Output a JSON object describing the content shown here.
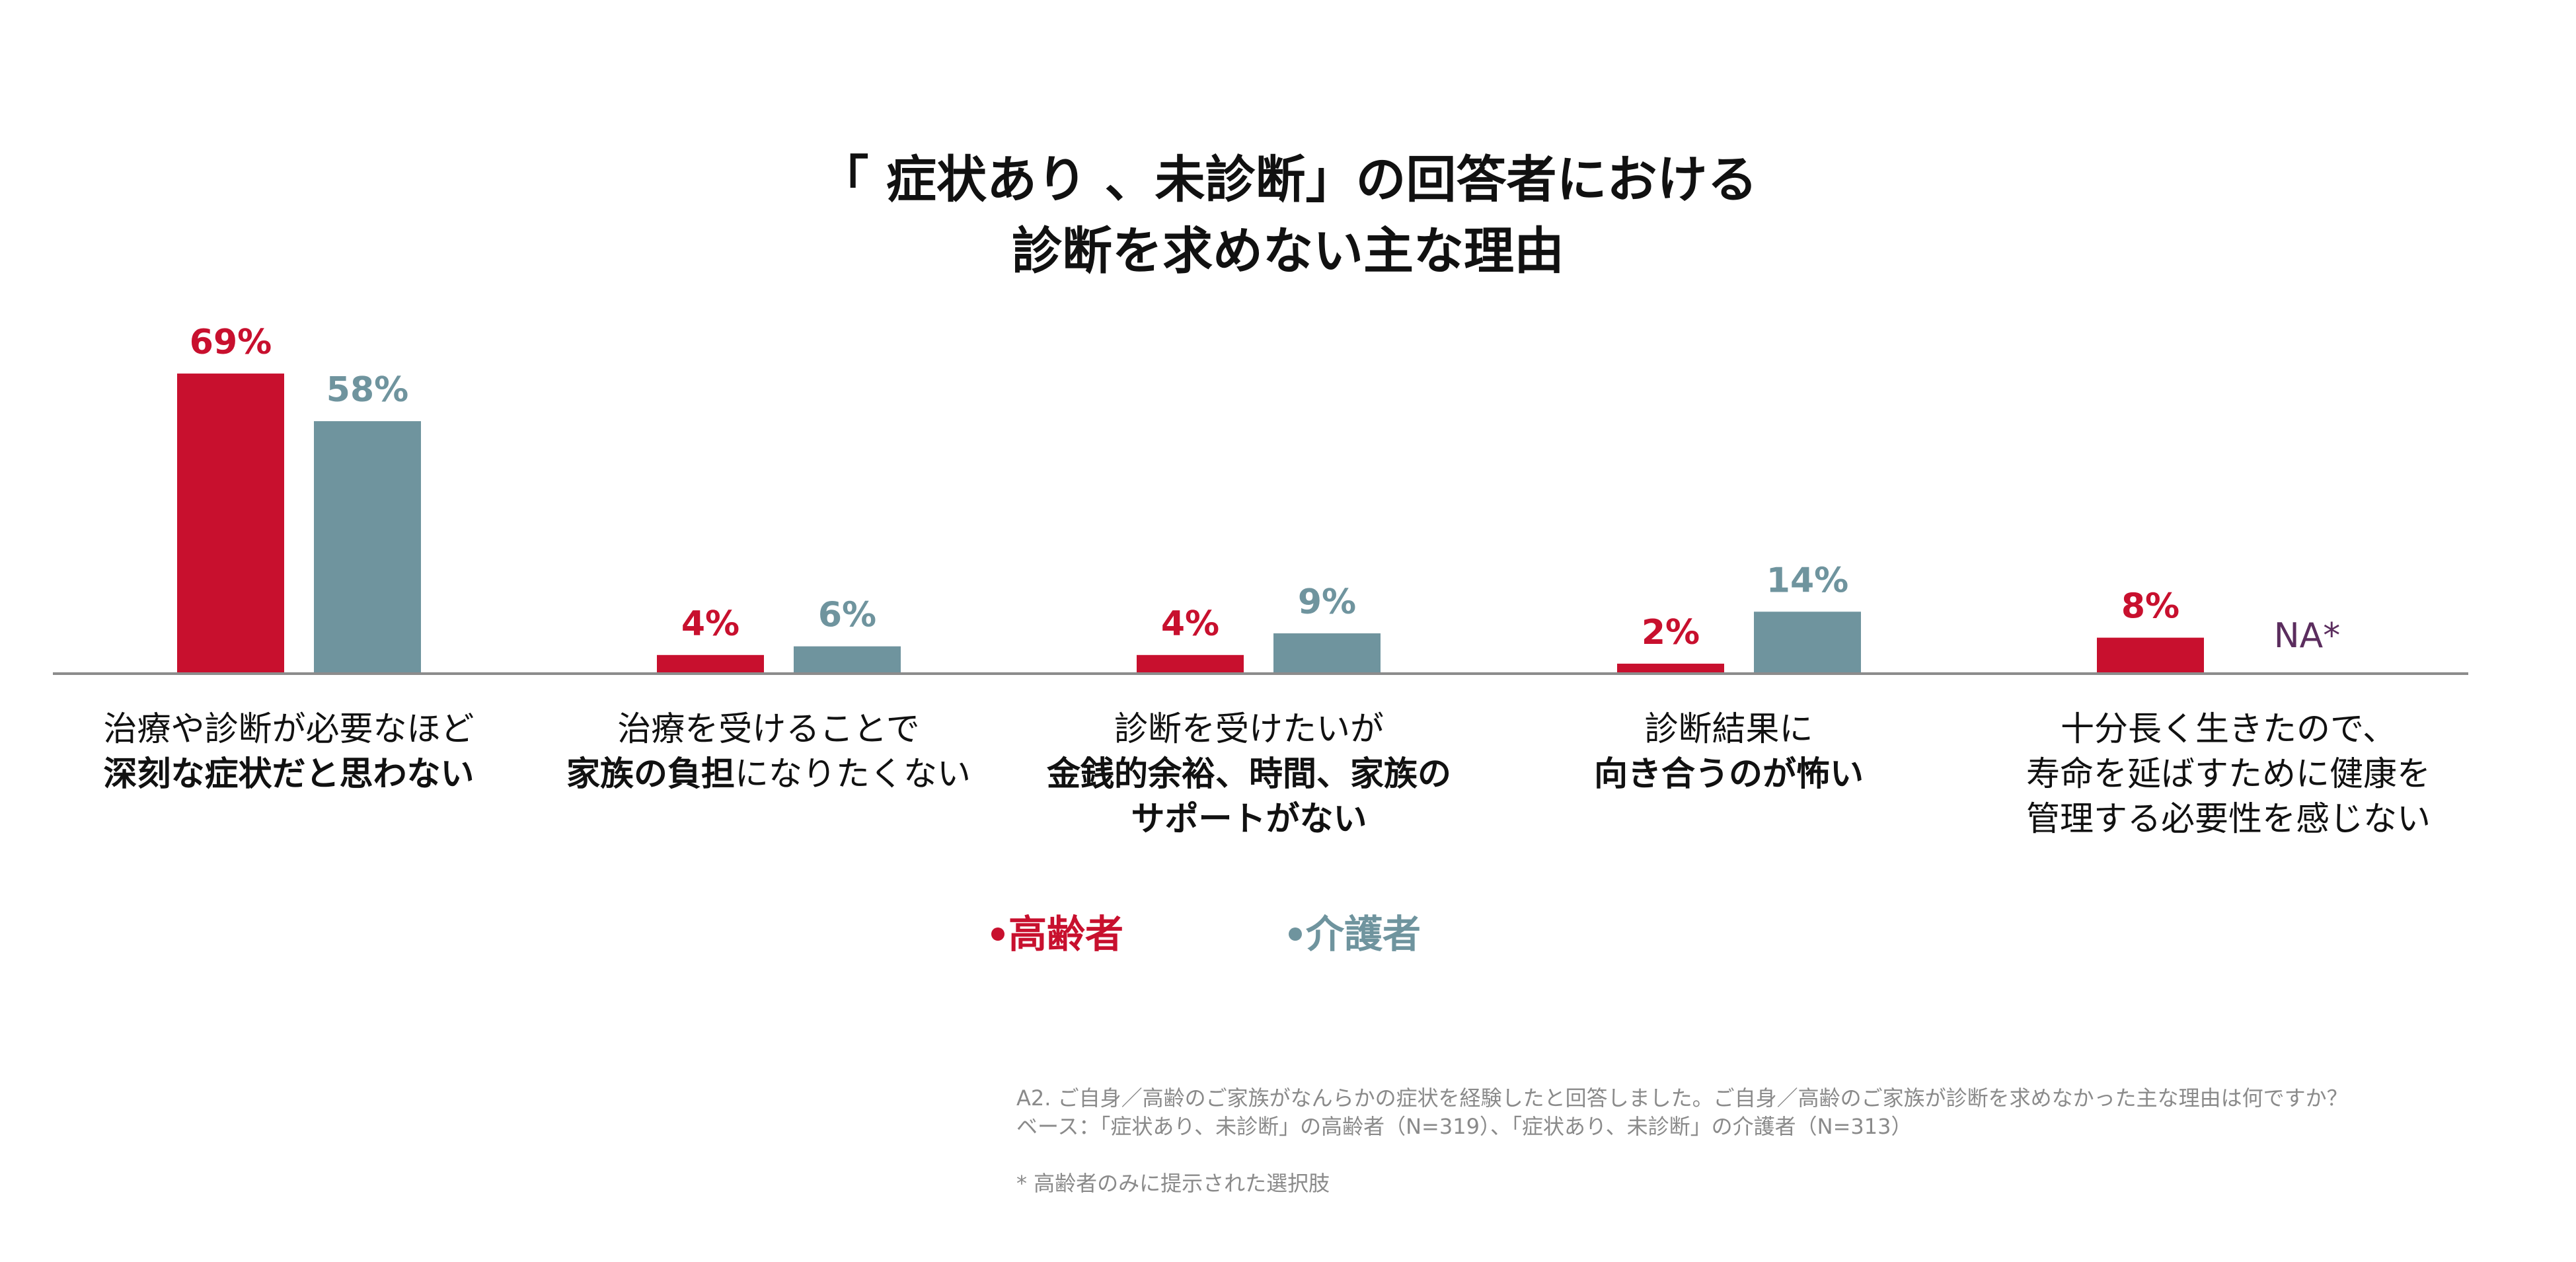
{
  "chart_data": {
    "type": "bar",
    "title_lines": [
      "「 症状あり 、未診断」の回答者における",
      "診断を求めない主な理由"
    ],
    "categories": [
      {
        "lines": [
          [
            {
              "t": "治療や診断が必要なほど",
              "b": false
            }
          ],
          [
            {
              "t": "深刻な症状だと思わない",
              "b": true
            }
          ]
        ]
      },
      {
        "lines": [
          [
            {
              "t": "治療を受けることで",
              "b": false
            }
          ],
          [
            {
              "t": "家族の負担",
              "b": true
            },
            {
              "t": "になりたくない",
              "b": false
            }
          ]
        ]
      },
      {
        "lines": [
          [
            {
              "t": "診断を受けたいが",
              "b": false
            }
          ],
          [
            {
              "t": "金銭的余裕、時間、家族の",
              "b": true
            }
          ],
          [
            {
              "t": "サポートがない",
              "b": true
            }
          ]
        ]
      },
      {
        "lines": [
          [
            {
              "t": "診断結果に",
              "b": false
            }
          ],
          [
            {
              "t": "向き合うのが怖い",
              "b": true
            }
          ]
        ]
      },
      {
        "lines": [
          [
            {
              "t": "十分長く生きたので、",
              "b": false
            }
          ],
          [
            {
              "t": "寿命を延ばすために健康を",
              "b": false
            }
          ],
          [
            {
              "t": "管理する必要性を感じない",
              "b": false
            }
          ]
        ]
      }
    ],
    "series": [
      {
        "name": "高齢者",
        "color": "#c8102e",
        "values": [
          69,
          4,
          4,
          2,
          8
        ],
        "labels": [
          "69%",
          "4%",
          "4%",
          "2%",
          "8%"
        ]
      },
      {
        "name": "介護者",
        "color": "#6f949e",
        "values": [
          58,
          6,
          9,
          14,
          null
        ],
        "labels": [
          "58%",
          "6%",
          "9%",
          "14%",
          "NA*"
        ]
      }
    ],
    "na_color": "#5b2d5e",
    "ylim": [
      0,
      100
    ],
    "legend_position": "bottom-center",
    "grid": false
  },
  "notes": {
    "question": "A2. ご自身／高齢のご家族がなんらかの症状を経験したと回答しました。ご自身／高齢のご家族が診断を求めなかった主な理由は何ですか？",
    "base": "ベース：「症状あり、未診断」の高齢者（N=319）、「症状あり、未診断」の介護者（N=313）",
    "footnote": "* 高齢者のみに提示された選択肢"
  }
}
